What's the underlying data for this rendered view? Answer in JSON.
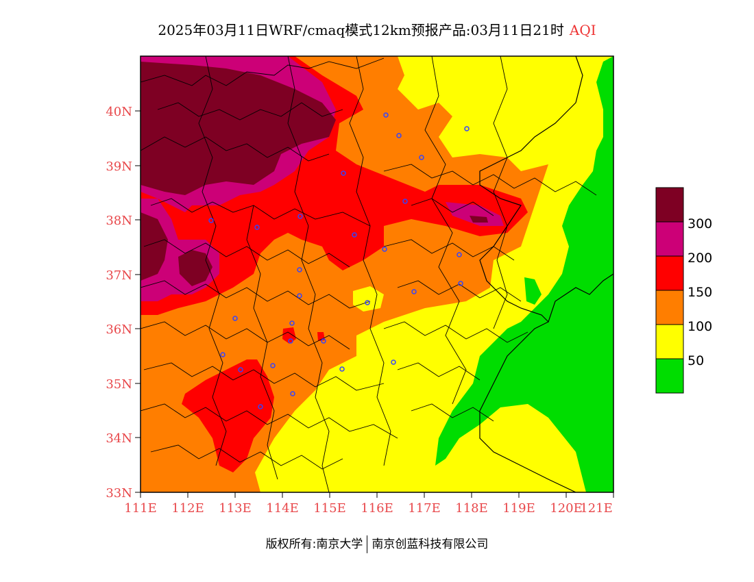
{
  "title": {
    "text": "2025年03月11日WRF/cmaq模式12km预报产品:03月11日21时",
    "product": "AQI"
  },
  "axes": {
    "lon_labels": [
      "111E",
      "112E",
      "113E",
      "114E",
      "115E",
      "116E",
      "117E",
      "118E",
      "119E",
      "120E",
      "121E"
    ],
    "lat_labels": [
      "33N",
      "34N",
      "35N",
      "36N",
      "37N",
      "38N",
      "39N",
      "40N"
    ]
  },
  "legend": {
    "levels": [
      {
        "label": "",
        "color": "#00dd00"
      },
      {
        "label": "50",
        "color": "#ffff00"
      },
      {
        "label": "100",
        "color": "#ff7e00"
      },
      {
        "label": "150",
        "color": "#ff0000"
      },
      {
        "label": "200",
        "color": "#cc0077"
      },
      {
        "label": "300",
        "color": "#7e0023"
      }
    ]
  },
  "footer": {
    "left": "版权所有:南京大学",
    "right": "南京创蓝科技有限公司"
  }
}
